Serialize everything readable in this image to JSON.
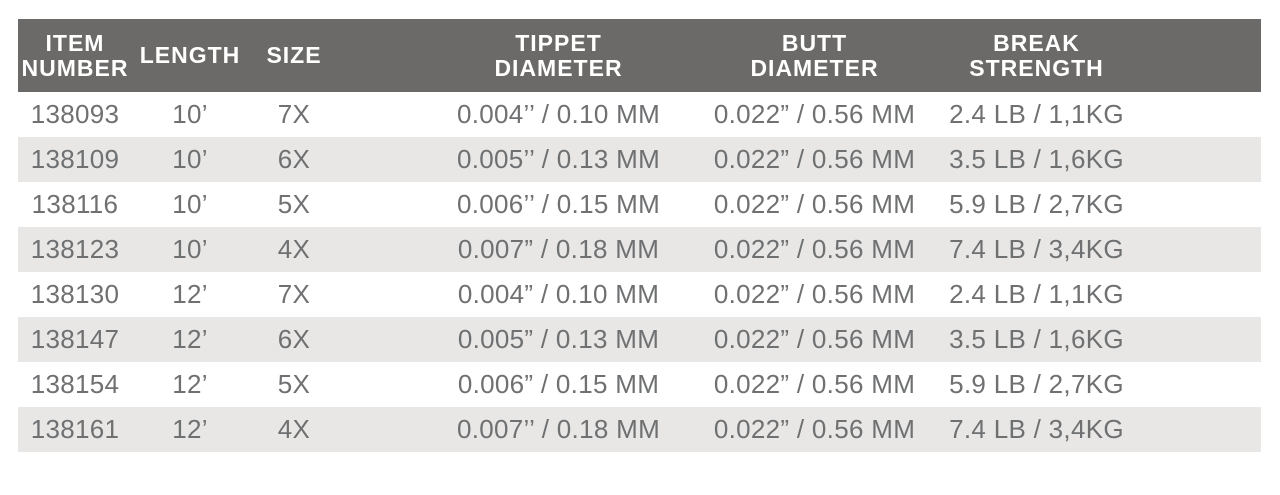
{
  "chart_data": {
    "type": "table",
    "title": "Leader / tippet specification table",
    "columns": [
      "ITEM NUMBER",
      "LENGTH",
      "SIZE",
      "TIPPET DIAMETER",
      "BUTT DIAMETER",
      "BREAK STRENGTH"
    ],
    "rows": [
      [
        "138093",
        "10’",
        "7X",
        "0.004’’ / 0.10 MM",
        "0.022” / 0.56 MM",
        "2.4 LB / 1,1KG"
      ],
      [
        "138109",
        "10’",
        "6X",
        "0.005’’ / 0.13 MM",
        "0.022” / 0.56 MM",
        "3.5 LB / 1,6KG"
      ],
      [
        "138116",
        "10’",
        "5X",
        "0.006’’ / 0.15 MM",
        "0.022” / 0.56 MM",
        "5.9 LB / 2,7KG"
      ],
      [
        "138123",
        "10’",
        "4X",
        "0.007” / 0.18 MM",
        "0.022” / 0.56 MM",
        "7.4 LB / 3,4KG"
      ],
      [
        "138130",
        "12’",
        "7X",
        "0.004” / 0.10 MM",
        "0.022” / 0.56 MM",
        "2.4 LB / 1,1KG"
      ],
      [
        "138147",
        "12’",
        "6X",
        "0.005” / 0.13 MM",
        "0.022” / 0.56 MM",
        "3.5 LB / 1,6KG"
      ],
      [
        "138154",
        "12’",
        "5X",
        "0.006” / 0.15 MM",
        "0.022” / 0.56 MM",
        "5.9 LB / 2,7KG"
      ],
      [
        "138161",
        "12’",
        "4X",
        "0.007’’ / 0.18 MM",
        "0.022” / 0.56 MM",
        "7.4 LB / 3,4KG"
      ]
    ]
  },
  "table": {
    "headers": [
      {
        "lines": [
          "ITEM",
          "NUMBER"
        ]
      },
      {
        "lines": [
          "LENGTH"
        ]
      },
      {
        "lines": [
          "SIZE"
        ]
      },
      {
        "lines": [
          "TIPPET",
          "DIAMETER"
        ]
      },
      {
        "lines": [
          "BUTT",
          "DIAMETER"
        ]
      },
      {
        "lines": [
          "BREAK",
          "STRENGTH"
        ]
      }
    ],
    "rows": [
      {
        "item_number": "138093",
        "length": "10’",
        "size": "7X",
        "tippet_diameter": "0.004’’ / 0.10 MM",
        "butt_diameter": "0.022” / 0.56 MM",
        "break_strength": "2.4 LB / 1,1KG"
      },
      {
        "item_number": "138109",
        "length": "10’",
        "size": "6X",
        "tippet_diameter": "0.005’’ / 0.13 MM",
        "butt_diameter": "0.022” / 0.56 MM",
        "break_strength": "3.5 LB / 1,6KG"
      },
      {
        "item_number": "138116",
        "length": "10’",
        "size": "5X",
        "tippet_diameter": "0.006’’ / 0.15 MM",
        "butt_diameter": "0.022” / 0.56 MM",
        "break_strength": "5.9 LB / 2,7KG"
      },
      {
        "item_number": "138123",
        "length": "10’",
        "size": "4X",
        "tippet_diameter": "0.007” / 0.18 MM",
        "butt_diameter": "0.022” / 0.56 MM",
        "break_strength": "7.4 LB / 3,4KG"
      },
      {
        "item_number": "138130",
        "length": "12’",
        "size": "7X",
        "tippet_diameter": "0.004” / 0.10 MM",
        "butt_diameter": "0.022” / 0.56 MM",
        "break_strength": "2.4 LB / 1,1KG"
      },
      {
        "item_number": "138147",
        "length": "12’",
        "size": "6X",
        "tippet_diameter": "0.005” / 0.13 MM",
        "butt_diameter": "0.022” / 0.56 MM",
        "break_strength": "3.5 LB / 1,6KG"
      },
      {
        "item_number": "138154",
        "length": "12’",
        "size": "5X",
        "tippet_diameter": "0.006” / 0.15 MM",
        "butt_diameter": "0.022” / 0.56 MM",
        "break_strength": "5.9 LB / 2,7KG"
      },
      {
        "item_number": "138161",
        "length": "12’",
        "size": "4X",
        "tippet_diameter": "0.007’’ / 0.18 MM",
        "butt_diameter": "0.022” / 0.56 MM",
        "break_strength": "7.4 LB / 3,4KG"
      }
    ]
  },
  "colors": {
    "header_bg": "#6b6a68",
    "row_alt_bg": "#e8e7e5",
    "row_bg": "#ffffff",
    "header_text": "#ffffff",
    "data_text": "#6f7072",
    "page_bg": "#ffffff"
  }
}
